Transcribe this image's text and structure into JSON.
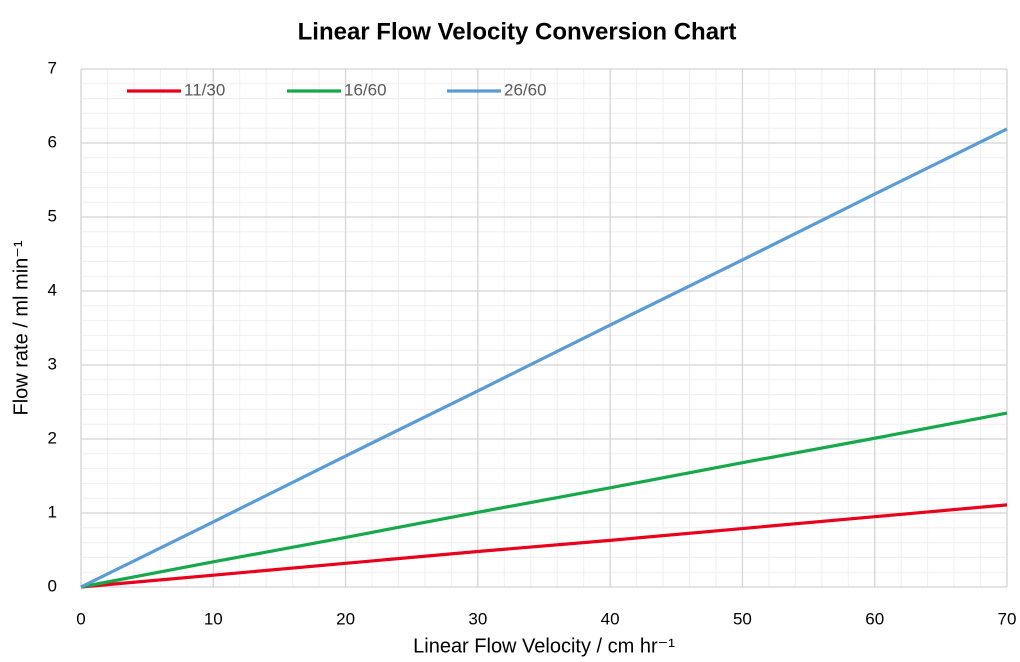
{
  "chart_data": {
    "type": "line",
    "title": "Linear Flow Velocity Conversion Chart",
    "x_label": "Linear Flow Velocity / cm hr⁻¹",
    "y_label": "Flow rate / ml min⁻¹",
    "x": [
      0,
      10,
      20,
      30,
      40,
      50,
      60,
      70
    ],
    "series": [
      {
        "name": "11/30",
        "color": "#e8001c",
        "values": [
          0,
          0.16,
          0.32,
          0.48,
          0.63,
          0.79,
          0.95,
          1.11
        ]
      },
      {
        "name": "16/60",
        "color": "#16a84a",
        "values": [
          0,
          0.34,
          0.67,
          1.01,
          1.34,
          1.68,
          2.01,
          2.35
        ]
      },
      {
        "name": "26/60",
        "color": "#5b9bd5",
        "values": [
          0,
          0.88,
          1.77,
          2.65,
          3.54,
          4.42,
          5.31,
          6.19
        ]
      }
    ],
    "xlim": [
      0,
      70
    ],
    "xticks": [
      0,
      10,
      20,
      30,
      40,
      50,
      60,
      70
    ],
    "ylim": [
      0,
      7
    ],
    "yticks": [
      0,
      1,
      2,
      3,
      4,
      5,
      6,
      7
    ],
    "grid": true,
    "minor_grid": true,
    "legend": "top-left"
  }
}
